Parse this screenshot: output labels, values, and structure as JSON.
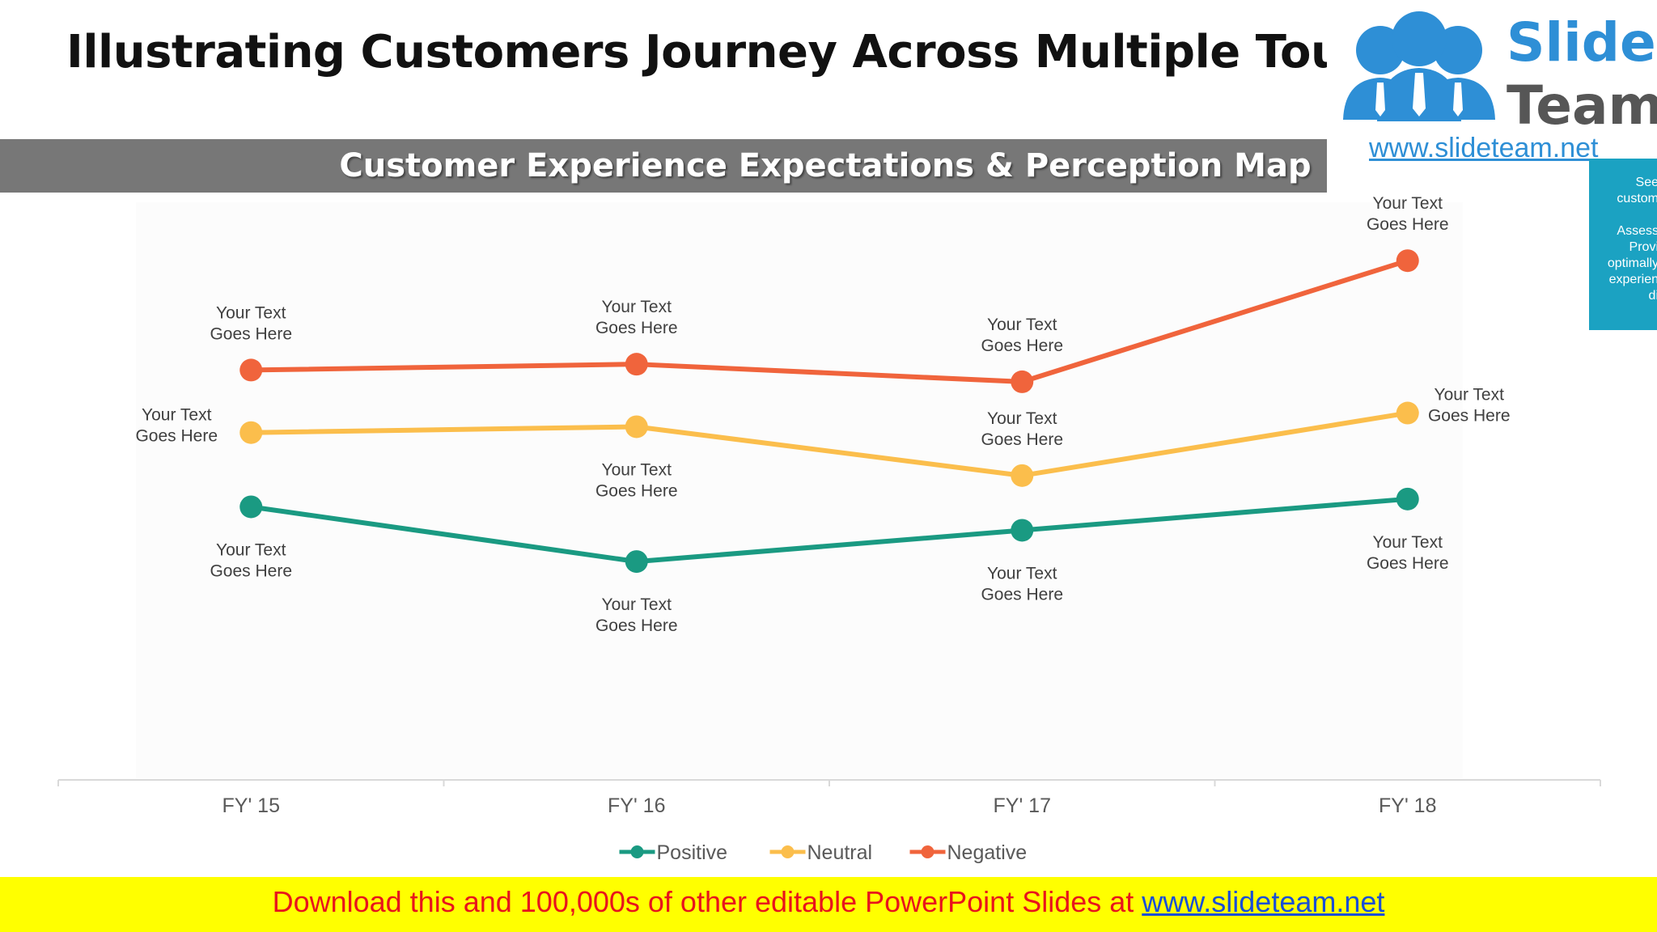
{
  "slide": {
    "title": "Illustrating Customers Journey Across Multiple Touchpoints",
    "footer_text": "Download this and 100,000s of other editable PowerPoint Slides at ",
    "footer_link": "www.slideteam.net"
  },
  "logo": {
    "word1": "Slide",
    "word2": "Team",
    "url": "www.slideteam.net"
  },
  "side_panel": {
    "lines": [
      "See",
      "custom",
      "",
      "Assess",
      "Provi",
      "optimally",
      "experien",
      "di"
    ]
  },
  "colors": {
    "positive": "#1a9a82",
    "neutral": "#fbbe4c",
    "negative": "#f0643c",
    "header_bg": "#777777",
    "footer_bg": "#ffff00",
    "footer_text": "#e8141c",
    "footer_link": "#1a4fd6"
  },
  "chart_data": {
    "type": "line",
    "title": "Customer Experience Expectations & Perception Map",
    "categories": [
      "FY' 15",
      "FY' 16",
      "FY' 17",
      "FY' 18"
    ],
    "ylim": [
      0,
      10
    ],
    "grid": false,
    "legend_position": "bottom",
    "series": [
      {
        "name": "Positive",
        "color": "#1a9a82",
        "values": [
          4.4,
          3.0,
          3.8,
          4.6
        ],
        "labels": [
          [
            "Your Text",
            "Goes Here"
          ],
          [
            "Your Text",
            "Goes Here"
          ],
          [
            "Your Text",
            "Goes Here"
          ],
          [
            "Your Text",
            "Goes Here"
          ]
        ],
        "label_positions": [
          "below",
          "below",
          "below",
          "below"
        ]
      },
      {
        "name": "Neutral",
        "color": "#fbbe4c",
        "values": [
          6.3,
          6.45,
          5.2,
          6.8
        ],
        "labels": [
          [
            "Your Text",
            "Goes Here"
          ],
          [
            "Your Text",
            "Goes Here"
          ],
          [
            "Your Text",
            "Goes Here"
          ],
          [
            "Your Text",
            "Goes Here"
          ]
        ],
        "label_positions": [
          "left",
          "below",
          "above",
          "right"
        ]
      },
      {
        "name": "Negative",
        "color": "#f0643c",
        "values": [
          7.9,
          8.05,
          7.6,
          10.7
        ],
        "labels": [
          [
            "Your Text",
            "Goes Here"
          ],
          [
            "Your Text",
            "Goes Here"
          ],
          [
            "Your Text",
            "Goes Here"
          ],
          [
            "Your Text",
            "Goes Here"
          ]
        ],
        "label_positions": [
          "above",
          "above",
          "above",
          "above"
        ]
      }
    ]
  }
}
